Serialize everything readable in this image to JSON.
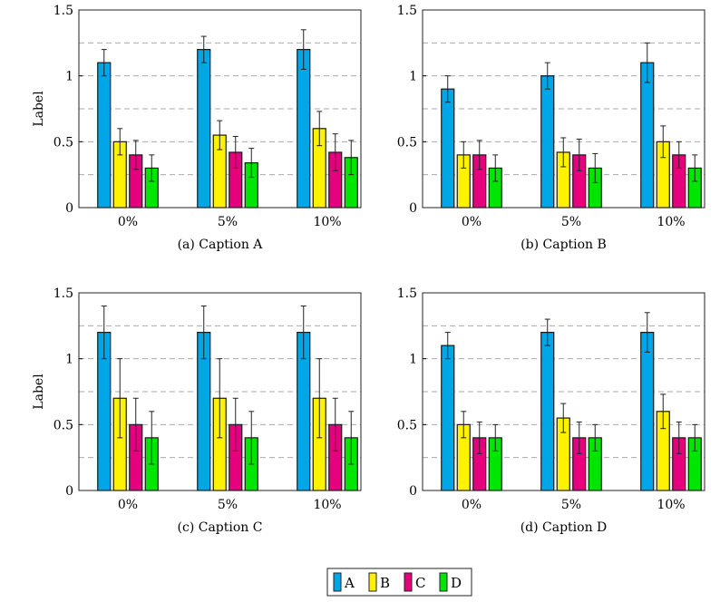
{
  "chart_data": [
    {
      "type": "bar",
      "caption": "(a) Caption A",
      "ylabel": "Label",
      "categories": [
        "0%",
        "5%",
        "10%"
      ],
      "ylim": [
        0,
        1.5
      ],
      "yticks": [
        "0",
        "0.5",
        "1",
        "1.5"
      ],
      "grid": "dashed horizontal every 0.25",
      "series": [
        {
          "name": "A",
          "values": [
            1.1,
            1.2,
            1.2
          ],
          "errors": [
            0.1,
            0.1,
            0.15
          ]
        },
        {
          "name": "B",
          "values": [
            0.5,
            0.55,
            0.6
          ],
          "errors": [
            0.1,
            0.11,
            0.13
          ]
        },
        {
          "name": "C",
          "values": [
            0.4,
            0.42,
            0.42
          ],
          "errors": [
            0.11,
            0.12,
            0.14
          ]
        },
        {
          "name": "D",
          "values": [
            0.3,
            0.34,
            0.38
          ],
          "errors": [
            0.1,
            0.11,
            0.13
          ]
        }
      ]
    },
    {
      "type": "bar",
      "caption": "(b) Caption B",
      "ylabel": "",
      "categories": [
        "0%",
        "5%",
        "10%"
      ],
      "ylim": [
        0,
        1.5
      ],
      "yticks": [
        "0",
        "0.5",
        "1",
        "1.5"
      ],
      "grid": "dashed horizontal every 0.25",
      "series": [
        {
          "name": "A",
          "values": [
            0.9,
            1.0,
            1.1
          ],
          "errors": [
            0.1,
            0.1,
            0.15
          ]
        },
        {
          "name": "B",
          "values": [
            0.4,
            0.42,
            0.5
          ],
          "errors": [
            0.1,
            0.11,
            0.12
          ]
        },
        {
          "name": "C",
          "values": [
            0.4,
            0.4,
            0.4
          ],
          "errors": [
            0.11,
            0.12,
            0.1
          ]
        },
        {
          "name": "D",
          "values": [
            0.3,
            0.3,
            0.3
          ],
          "errors": [
            0.1,
            0.11,
            0.1
          ]
        }
      ]
    },
    {
      "type": "bar",
      "caption": "(c) Caption C",
      "ylabel": "Label",
      "categories": [
        "0%",
        "5%",
        "10%"
      ],
      "ylim": [
        0,
        1.5
      ],
      "yticks": [
        "0",
        "0.5",
        "1",
        "1.5"
      ],
      "grid": "dashed horizontal every 0.25",
      "series": [
        {
          "name": "A",
          "values": [
            1.2,
            1.2,
            1.2
          ],
          "errors": [
            0.2,
            0.2,
            0.2
          ]
        },
        {
          "name": "B",
          "values": [
            0.7,
            0.7,
            0.7
          ],
          "errors": [
            0.3,
            0.3,
            0.3
          ]
        },
        {
          "name": "C",
          "values": [
            0.5,
            0.5,
            0.5
          ],
          "errors": [
            0.2,
            0.2,
            0.2
          ]
        },
        {
          "name": "D",
          "values": [
            0.4,
            0.4,
            0.4
          ],
          "errors": [
            0.2,
            0.2,
            0.2
          ]
        }
      ]
    },
    {
      "type": "bar",
      "caption": "(d) Caption D",
      "ylabel": "",
      "categories": [
        "0%",
        "5%",
        "10%"
      ],
      "ylim": [
        0,
        1.5
      ],
      "yticks": [
        "0",
        "0.5",
        "1",
        "1.5"
      ],
      "grid": "dashed horizontal every 0.25",
      "series": [
        {
          "name": "A",
          "values": [
            1.1,
            1.2,
            1.2
          ],
          "errors": [
            0.1,
            0.1,
            0.15
          ]
        },
        {
          "name": "B",
          "values": [
            0.5,
            0.55,
            0.6
          ],
          "errors": [
            0.1,
            0.11,
            0.13
          ]
        },
        {
          "name": "C",
          "values": [
            0.4,
            0.4,
            0.4
          ],
          "errors": [
            0.12,
            0.12,
            0.12
          ]
        },
        {
          "name": "D",
          "values": [
            0.4,
            0.4,
            0.4
          ],
          "errors": [
            0.1,
            0.1,
            0.1
          ]
        }
      ]
    }
  ],
  "legend": {
    "placement": "bottom-center",
    "entries": [
      {
        "name": "A",
        "color": "#00a6e6"
      },
      {
        "name": "B",
        "color": "#fff200"
      },
      {
        "name": "C",
        "color": "#e6007e"
      },
      {
        "name": "D",
        "color": "#00e600"
      }
    ]
  }
}
